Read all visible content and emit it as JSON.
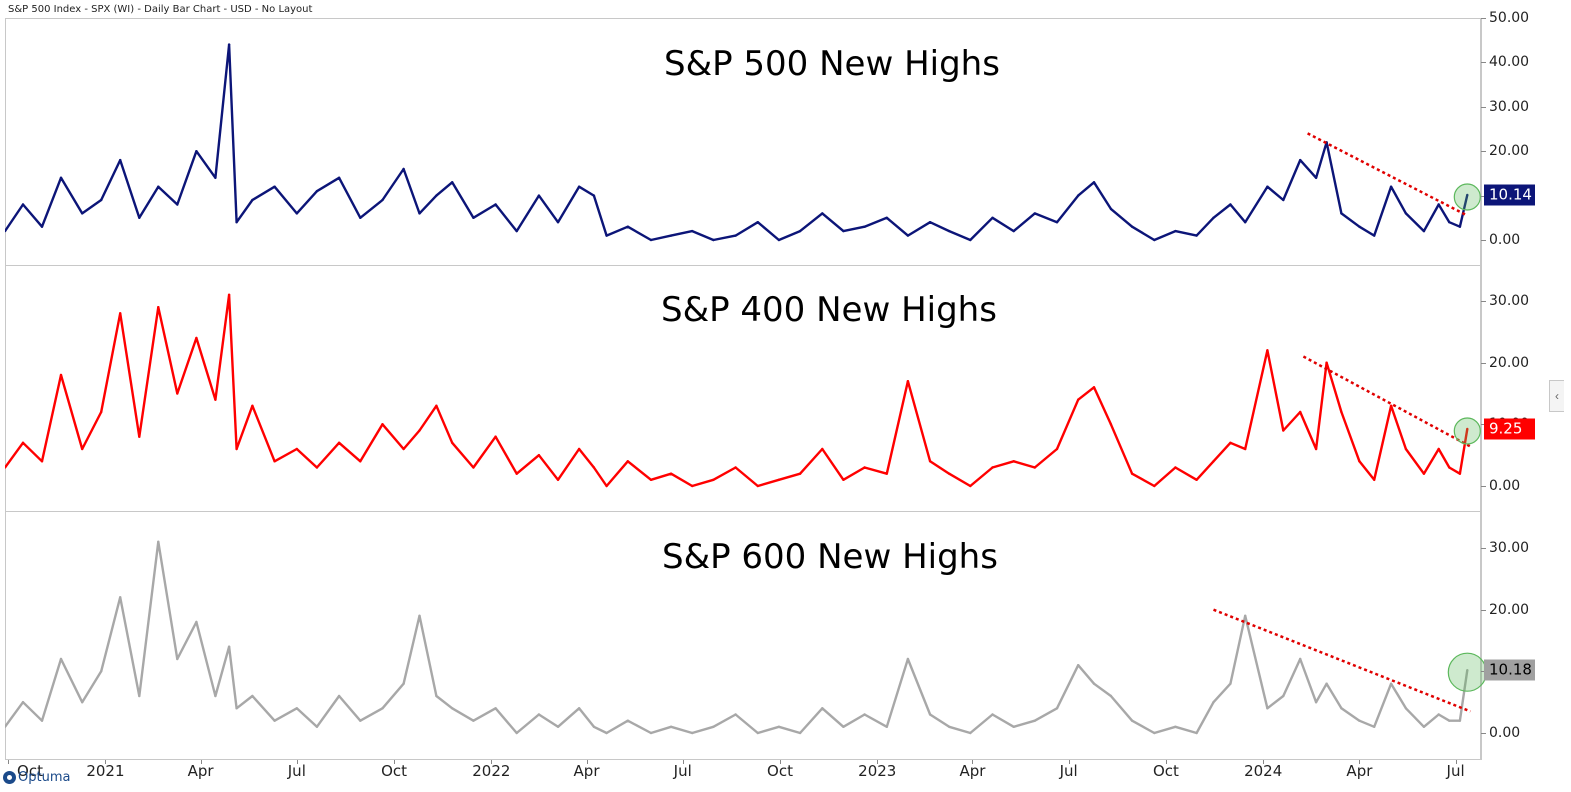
{
  "header": {
    "title": "S&P 500 Index - SPX (WI) - Daily Bar Chart - USD - No Layout"
  },
  "logo": {
    "text": "Optuma"
  },
  "colors": {
    "sp500": "#0c1578",
    "sp400": "#ff0000",
    "sp600": "#a8a8a8",
    "trendline": "#e00000",
    "highlight": "#5cb85c"
  },
  "chart_data": [
    {
      "type": "line",
      "title": "S&P 500 New Highs",
      "series_color": "#0c1578",
      "ylim": [
        -0.5,
        50
      ],
      "yticks": [
        {
          "value": 0,
          "label": "0.00"
        },
        {
          "value": 10,
          "label": "10.00"
        },
        {
          "value": 20,
          "label": "20.00"
        },
        {
          "value": 30,
          "label": "30.00"
        },
        {
          "value": 40,
          "label": "40.00"
        },
        {
          "value": 50,
          "label": "50.00"
        }
      ],
      "last_value": 10.14,
      "last_value_label": "10.14",
      "trendline": {
        "from": [
          "2024-02-12",
          24
        ],
        "to": [
          "2024-07-12",
          5.5
        ]
      },
      "x": [
        "2020-09-28",
        "2020-10-15",
        "2020-11-02",
        "2020-11-20",
        "2020-12-10",
        "2020-12-28",
        "2021-01-15",
        "2021-02-02",
        "2021-02-20",
        "2021-03-10",
        "2021-03-28",
        "2021-04-15",
        "2021-04-28",
        "2021-05-05",
        "2021-05-20",
        "2021-06-10",
        "2021-07-01",
        "2021-07-20",
        "2021-08-10",
        "2021-08-30",
        "2021-09-20",
        "2021-10-10",
        "2021-10-25",
        "2021-11-10",
        "2021-11-25",
        "2021-12-15",
        "2022-01-05",
        "2022-01-25",
        "2022-02-15",
        "2022-03-05",
        "2022-03-25",
        "2022-04-08",
        "2022-04-20",
        "2022-05-10",
        "2022-06-01",
        "2022-06-20",
        "2022-07-10",
        "2022-07-30",
        "2022-08-20",
        "2022-09-10",
        "2022-09-30",
        "2022-10-20",
        "2022-11-10",
        "2022-11-30",
        "2022-12-20",
        "2023-01-10",
        "2023-01-30",
        "2023-02-20",
        "2023-03-10",
        "2023-03-30",
        "2023-04-20",
        "2023-05-10",
        "2023-05-30",
        "2023-06-20",
        "2023-07-10",
        "2023-07-25",
        "2023-08-10",
        "2023-08-30",
        "2023-09-20",
        "2023-10-10",
        "2023-10-30",
        "2023-11-15",
        "2023-12-01",
        "2023-12-15",
        "2024-01-05",
        "2024-01-20",
        "2024-02-05",
        "2024-02-20",
        "2024-03-01",
        "2024-03-15",
        "2024-04-01",
        "2024-04-15",
        "2024-05-01",
        "2024-05-15",
        "2024-06-01",
        "2024-06-15",
        "2024-06-25",
        "2024-07-05",
        "2024-07-12"
      ],
      "values": [
        2,
        8,
        3,
        14,
        6,
        9,
        18,
        5,
        12,
        8,
        20,
        14,
        44,
        4,
        9,
        12,
        6,
        11,
        14,
        5,
        9,
        16,
        6,
        10,
        13,
        5,
        8,
        2,
        10,
        4,
        12,
        10,
        1,
        3,
        0,
        1,
        2,
        0,
        1,
        4,
        0,
        2,
        6,
        2,
        3,
        5,
        1,
        4,
        2,
        0,
        5,
        2,
        6,
        4,
        10,
        13,
        7,
        3,
        0,
        2,
        1,
        5,
        8,
        4,
        12,
        9,
        18,
        14,
        22,
        6,
        3,
        1,
        12,
        6,
        2,
        8,
        4,
        3,
        10.14
      ]
    },
    {
      "type": "line",
      "title": "S&P 400 New Highs",
      "series_color": "#ff0000",
      "ylim": [
        -0.5,
        35
      ],
      "yticks": [
        {
          "value": 0,
          "label": "0.00"
        },
        {
          "value": 10,
          "label": "10.00"
        },
        {
          "value": 20,
          "label": "20.00"
        },
        {
          "value": 30,
          "label": "30.00"
        }
      ],
      "last_value": 9.25,
      "last_value_label": "9.25",
      "trendline": {
        "from": [
          "2024-02-08",
          21
        ],
        "to": [
          "2024-07-15",
          6.4
        ]
      },
      "x": [
        "2020-09-28",
        "2020-10-15",
        "2020-11-02",
        "2020-11-20",
        "2020-12-10",
        "2020-12-28",
        "2021-01-15",
        "2021-02-02",
        "2021-02-20",
        "2021-03-10",
        "2021-03-28",
        "2021-04-15",
        "2021-04-28",
        "2021-05-05",
        "2021-05-20",
        "2021-06-10",
        "2021-07-01",
        "2021-07-20",
        "2021-08-10",
        "2021-08-30",
        "2021-09-20",
        "2021-10-10",
        "2021-10-25",
        "2021-11-10",
        "2021-11-25",
        "2021-12-15",
        "2022-01-05",
        "2022-01-25",
        "2022-02-15",
        "2022-03-05",
        "2022-03-25",
        "2022-04-08",
        "2022-04-20",
        "2022-05-10",
        "2022-06-01",
        "2022-06-20",
        "2022-07-10",
        "2022-07-30",
        "2022-08-20",
        "2022-09-10",
        "2022-09-30",
        "2022-10-20",
        "2022-11-10",
        "2022-11-30",
        "2022-12-20",
        "2023-01-10",
        "2023-01-30",
        "2023-02-20",
        "2023-03-10",
        "2023-03-30",
        "2023-04-20",
        "2023-05-10",
        "2023-05-30",
        "2023-06-20",
        "2023-07-10",
        "2023-07-25",
        "2023-08-10",
        "2023-08-30",
        "2023-09-20",
        "2023-10-10",
        "2023-10-30",
        "2023-11-15",
        "2023-12-01",
        "2023-12-15",
        "2024-01-05",
        "2024-01-20",
        "2024-02-05",
        "2024-02-20",
        "2024-03-01",
        "2024-03-15",
        "2024-04-01",
        "2024-04-15",
        "2024-05-01",
        "2024-05-15",
        "2024-06-01",
        "2024-06-15",
        "2024-06-25",
        "2024-07-05",
        "2024-07-12"
      ],
      "values": [
        3,
        7,
        4,
        18,
        6,
        12,
        28,
        8,
        29,
        15,
        24,
        14,
        31,
        6,
        13,
        4,
        6,
        3,
        7,
        4,
        10,
        6,
        9,
        13,
        7,
        3,
        8,
        2,
        5,
        1,
        6,
        3,
        0,
        4,
        1,
        2,
        0,
        1,
        3,
        0,
        1,
        2,
        6,
        1,
        3,
        2,
        17,
        4,
        2,
        0,
        3,
        4,
        3,
        6,
        14,
        16,
        10,
        2,
        0,
        3,
        1,
        4,
        7,
        6,
        22,
        9,
        12,
        6,
        20,
        12,
        4,
        1,
        13,
        6,
        2,
        6,
        3,
        2,
        9.25
      ]
    },
    {
      "type": "line",
      "title": "S&P 600 New Highs",
      "series_color": "#a8a8a8",
      "ylim": [
        -0.5,
        35
      ],
      "yticks": [
        {
          "value": 0,
          "label": "0.00"
        },
        {
          "value": 10,
          "label": "10.00"
        },
        {
          "value": 20,
          "label": "20.00"
        },
        {
          "value": 30,
          "label": "30.00"
        }
      ],
      "last_value": 10.18,
      "last_value_label": "10.18",
      "trendline": {
        "from": [
          "2023-11-15",
          20
        ],
        "to": [
          "2024-07-15",
          3.5
        ]
      },
      "x": [
        "2020-09-28",
        "2020-10-15",
        "2020-11-02",
        "2020-11-20",
        "2020-12-10",
        "2020-12-28",
        "2021-01-15",
        "2021-02-02",
        "2021-02-20",
        "2021-03-10",
        "2021-03-28",
        "2021-04-15",
        "2021-04-28",
        "2021-05-05",
        "2021-05-20",
        "2021-06-10",
        "2021-07-01",
        "2021-07-20",
        "2021-08-10",
        "2021-08-30",
        "2021-09-20",
        "2021-10-10",
        "2021-10-25",
        "2021-11-10",
        "2021-11-25",
        "2021-12-15",
        "2022-01-05",
        "2022-01-25",
        "2022-02-15",
        "2022-03-05",
        "2022-03-25",
        "2022-04-08",
        "2022-04-20",
        "2022-05-10",
        "2022-06-01",
        "2022-06-20",
        "2022-07-10",
        "2022-07-30",
        "2022-08-20",
        "2022-09-10",
        "2022-09-30",
        "2022-10-20",
        "2022-11-10",
        "2022-11-30",
        "2022-12-20",
        "2023-01-10",
        "2023-01-30",
        "2023-02-20",
        "2023-03-10",
        "2023-03-30",
        "2023-04-20",
        "2023-05-10",
        "2023-05-30",
        "2023-06-20",
        "2023-07-10",
        "2023-07-25",
        "2023-08-10",
        "2023-08-30",
        "2023-09-20",
        "2023-10-10",
        "2023-10-30",
        "2023-11-15",
        "2023-12-01",
        "2023-12-15",
        "2024-01-05",
        "2024-01-20",
        "2024-02-05",
        "2024-02-20",
        "2024-03-01",
        "2024-03-15",
        "2024-04-01",
        "2024-04-15",
        "2024-05-01",
        "2024-05-15",
        "2024-06-01",
        "2024-06-15",
        "2024-06-25",
        "2024-07-05",
        "2024-07-12"
      ],
      "values": [
        1,
        5,
        2,
        12,
        5,
        10,
        22,
        6,
        31,
        12,
        18,
        6,
        14,
        4,
        6,
        2,
        4,
        1,
        6,
        2,
        4,
        8,
        19,
        6,
        4,
        2,
        4,
        0,
        3,
        1,
        4,
        1,
        0,
        2,
        0,
        1,
        0,
        1,
        3,
        0,
        1,
        0,
        4,
        1,
        3,
        1,
        12,
        3,
        1,
        0,
        3,
        1,
        2,
        4,
        11,
        8,
        6,
        2,
        0,
        1,
        0,
        5,
        8,
        19,
        4,
        6,
        12,
        5,
        8,
        4,
        2,
        1,
        8,
        4,
        1,
        3,
        2,
        2,
        10.18
      ]
    }
  ],
  "x_axis": {
    "labels": [
      {
        "date": "2020-10-01",
        "text": "Oct"
      },
      {
        "date": "2021-01-01",
        "text": "2021"
      },
      {
        "date": "2021-04-01",
        "text": "Apr"
      },
      {
        "date": "2021-07-01",
        "text": "Jul"
      },
      {
        "date": "2021-10-01",
        "text": "Oct"
      },
      {
        "date": "2022-01-01",
        "text": "2022"
      },
      {
        "date": "2022-04-01",
        "text": "Apr"
      },
      {
        "date": "2022-07-01",
        "text": "Jul"
      },
      {
        "date": "2022-10-01",
        "text": "Oct"
      },
      {
        "date": "2023-01-01",
        "text": "2023"
      },
      {
        "date": "2023-04-01",
        "text": "Apr"
      },
      {
        "date": "2023-07-01",
        "text": "Jul"
      },
      {
        "date": "2023-10-01",
        "text": "Oct"
      },
      {
        "date": "2024-01-01",
        "text": "2024"
      },
      {
        "date": "2024-04-01",
        "text": "Apr"
      },
      {
        "date": "2024-07-01",
        "text": "Jul"
      }
    ],
    "range": [
      "2020-09-28",
      "2024-07-25"
    ]
  }
}
